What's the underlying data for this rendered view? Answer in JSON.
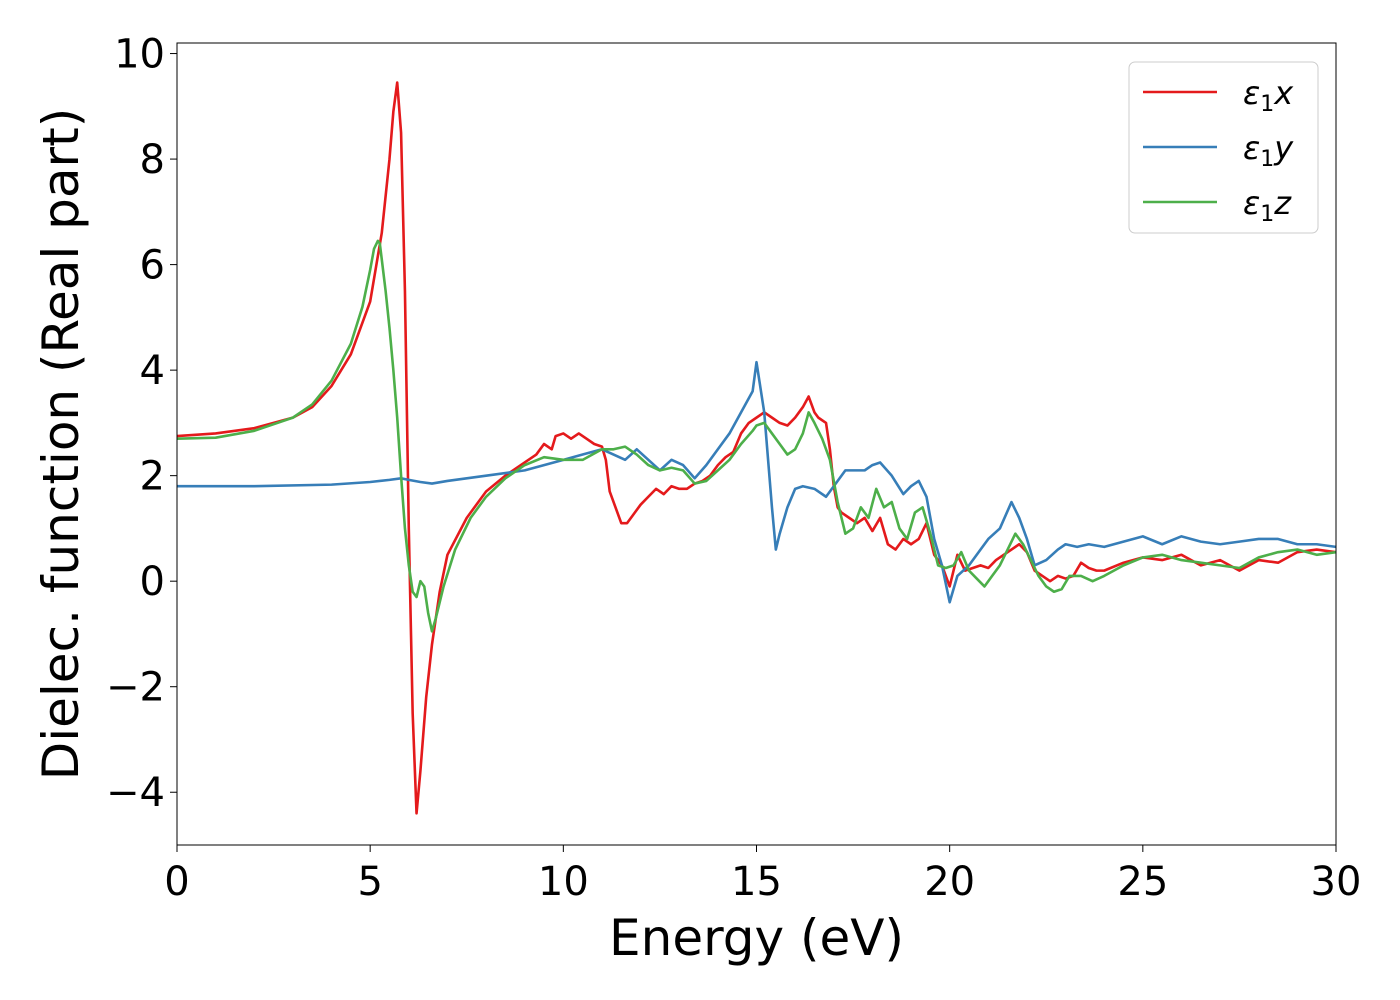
{
  "chart_data": {
    "type": "line",
    "xlabel": "Energy (eV)",
    "ylabel": "Dielec. function (Real part)",
    "xlim": [
      0,
      30
    ],
    "ylim": [
      -5,
      10.2
    ],
    "xticks": [
      0,
      5,
      10,
      15,
      20,
      25,
      30
    ],
    "xtick_labels": [
      "0",
      "5",
      "10",
      "15",
      "20",
      "25",
      "30"
    ],
    "yticks": [
      -4,
      -2,
      0,
      2,
      4,
      6,
      8,
      10
    ],
    "ytick_labels": [
      "−4",
      "−2",
      "0",
      "2",
      "4",
      "6",
      "8",
      "10"
    ],
    "grid": false,
    "legend_position": "top-right",
    "series": [
      {
        "name": "ε1x",
        "legend_main": "ε",
        "legend_sub": "1",
        "legend_tail": "x",
        "color": "#e41a1c",
        "x": [
          0,
          1,
          2,
          3,
          3.5,
          4,
          4.5,
          5,
          5.3,
          5.5,
          5.6,
          5.7,
          5.8,
          5.9,
          6.0,
          6.1,
          6.2,
          6.3,
          6.45,
          6.6,
          6.8,
          7.0,
          7.5,
          8.0,
          8.5,
          9.0,
          9.3,
          9.5,
          9.7,
          9.8,
          10.0,
          10.2,
          10.4,
          10.6,
          10.8,
          11.0,
          11.1,
          11.2,
          11.35,
          11.5,
          11.65,
          11.8,
          12.0,
          12.2,
          12.4,
          12.6,
          12.8,
          13.0,
          13.2,
          13.4,
          13.6,
          13.8,
          14.0,
          14.2,
          14.4,
          14.6,
          14.8,
          15.0,
          15.2,
          15.4,
          15.6,
          15.8,
          16.0,
          16.2,
          16.35,
          16.5,
          16.6,
          16.8,
          16.9,
          17.0,
          17.1,
          17.2,
          17.4,
          17.6,
          17.8,
          18.0,
          18.2,
          18.4,
          18.6,
          18.8,
          19.0,
          19.2,
          19.4,
          19.6,
          19.8,
          20.0,
          20.2,
          20.4,
          20.6,
          20.8,
          21.0,
          21.2,
          21.4,
          21.6,
          21.8,
          22.0,
          22.2,
          22.4,
          22.6,
          22.8,
          23.0,
          23.2,
          23.4,
          23.6,
          23.8,
          24.0,
          24.5,
          25.0,
          25.5,
          26.0,
          26.5,
          27.0,
          27.5,
          28.0,
          28.5,
          29.0,
          29.5,
          30.0
        ],
        "y": [
          2.75,
          2.8,
          2.9,
          3.1,
          3.3,
          3.7,
          4.3,
          5.3,
          6.6,
          8.0,
          8.9,
          9.45,
          8.5,
          5.5,
          1.0,
          -2.5,
          -4.4,
          -3.6,
          -2.2,
          -1.2,
          -0.2,
          0.5,
          1.2,
          1.7,
          2.0,
          2.25,
          2.4,
          2.6,
          2.5,
          2.75,
          2.8,
          2.7,
          2.8,
          2.7,
          2.6,
          2.55,
          2.3,
          1.7,
          1.4,
          1.1,
          1.1,
          1.25,
          1.45,
          1.6,
          1.75,
          1.65,
          1.8,
          1.75,
          1.75,
          1.85,
          1.9,
          2.0,
          2.2,
          2.35,
          2.45,
          2.8,
          3.0,
          3.1,
          3.2,
          3.1,
          3.0,
          2.95,
          3.1,
          3.3,
          3.5,
          3.2,
          3.1,
          3.0,
          2.5,
          1.8,
          1.4,
          1.3,
          1.2,
          1.1,
          1.2,
          0.95,
          1.2,
          0.7,
          0.6,
          0.8,
          0.7,
          0.8,
          1.1,
          0.5,
          0.3,
          -0.1,
          0.5,
          0.2,
          0.25,
          0.3,
          0.25,
          0.4,
          0.5,
          0.6,
          0.7,
          0.55,
          0.2,
          0.1,
          0.0,
          0.1,
          0.05,
          0.1,
          0.35,
          0.25,
          0.2,
          0.2,
          0.35,
          0.45,
          0.4,
          0.5,
          0.3,
          0.4,
          0.2,
          0.4,
          0.35,
          0.55,
          0.6,
          0.55
        ]
      },
      {
        "name": "ε1y",
        "legend_main": "ε",
        "legend_sub": "1",
        "legend_tail": "y",
        "color": "#377eb8",
        "x": [
          0,
          2,
          4,
          5,
          5.5,
          5.8,
          6.0,
          6.3,
          6.6,
          7.0,
          8.0,
          9.0,
          9.5,
          10.0,
          10.5,
          11.0,
          11.3,
          11.6,
          11.9,
          12.2,
          12.5,
          12.8,
          13.1,
          13.4,
          13.7,
          14.0,
          14.3,
          14.6,
          14.9,
          15.0,
          15.2,
          15.4,
          15.5,
          15.6,
          15.8,
          16.0,
          16.2,
          16.5,
          16.8,
          17.0,
          17.3,
          17.5,
          17.8,
          18.0,
          18.2,
          18.5,
          18.8,
          19.0,
          19.2,
          19.4,
          19.6,
          19.8,
          20.0,
          20.2,
          20.5,
          20.8,
          21.0,
          21.3,
          21.6,
          21.8,
          22.0,
          22.2,
          22.5,
          22.8,
          23.0,
          23.3,
          23.6,
          24.0,
          24.5,
          25.0,
          25.5,
          26.0,
          26.5,
          27.0,
          27.5,
          28.0,
          28.5,
          29.0,
          29.5,
          30.0
        ],
        "y": [
          1.8,
          1.8,
          1.83,
          1.88,
          1.92,
          1.95,
          1.92,
          1.88,
          1.85,
          1.9,
          2.0,
          2.1,
          2.2,
          2.3,
          2.4,
          2.5,
          2.4,
          2.3,
          2.5,
          2.3,
          2.1,
          2.3,
          2.2,
          1.95,
          2.2,
          2.5,
          2.8,
          3.2,
          3.6,
          4.15,
          3.2,
          1.4,
          0.6,
          0.9,
          1.4,
          1.75,
          1.8,
          1.75,
          1.6,
          1.8,
          2.1,
          2.1,
          2.1,
          2.2,
          2.25,
          2.0,
          1.65,
          1.8,
          1.9,
          1.6,
          0.8,
          0.3,
          -0.4,
          0.1,
          0.3,
          0.6,
          0.8,
          1.0,
          1.5,
          1.2,
          0.8,
          0.3,
          0.4,
          0.6,
          0.7,
          0.65,
          0.7,
          0.65,
          0.75,
          0.85,
          0.7,
          0.85,
          0.75,
          0.7,
          0.75,
          0.8,
          0.8,
          0.7,
          0.7,
          0.65
        ]
      },
      {
        "name": "ε1z",
        "legend_main": "ε",
        "legend_sub": "1",
        "legend_tail": "z",
        "color": "#4daf4a",
        "x": [
          0,
          1,
          2,
          3,
          3.5,
          4,
          4.5,
          4.8,
          5.0,
          5.1,
          5.2,
          5.25,
          5.3,
          5.4,
          5.5,
          5.6,
          5.7,
          5.8,
          5.9,
          6.0,
          6.1,
          6.2,
          6.3,
          6.4,
          6.5,
          6.6,
          6.7,
          6.9,
          7.2,
          7.6,
          8.0,
          8.5,
          9.0,
          9.5,
          10.0,
          10.5,
          11.0,
          11.3,
          11.6,
          11.9,
          12.2,
          12.5,
          12.8,
          13.1,
          13.4,
          13.7,
          14.0,
          14.3,
          14.6,
          14.9,
          15.0,
          15.2,
          15.4,
          15.6,
          15.8,
          16.0,
          16.2,
          16.35,
          16.5,
          16.7,
          16.9,
          17.1,
          17.3,
          17.5,
          17.7,
          17.9,
          18.1,
          18.3,
          18.5,
          18.7,
          18.9,
          19.1,
          19.3,
          19.5,
          19.7,
          19.9,
          20.1,
          20.3,
          20.5,
          20.7,
          20.9,
          21.1,
          21.3,
          21.5,
          21.7,
          21.9,
          22.1,
          22.3,
          22.5,
          22.7,
          22.9,
          23.1,
          23.4,
          23.7,
          24.0,
          24.5,
          25.0,
          25.5,
          26.0,
          26.5,
          27.0,
          27.5,
          28.0,
          28.5,
          29.0,
          29.5,
          30.0
        ],
        "y": [
          2.7,
          2.72,
          2.85,
          3.1,
          3.35,
          3.8,
          4.5,
          5.2,
          5.9,
          6.3,
          6.45,
          6.4,
          6.1,
          5.5,
          4.8,
          4.0,
          3.1,
          2.0,
          1.0,
          0.3,
          -0.2,
          -0.3,
          0.0,
          -0.1,
          -0.6,
          -0.95,
          -0.7,
          -0.1,
          0.6,
          1.2,
          1.6,
          1.95,
          2.2,
          2.35,
          2.3,
          2.3,
          2.5,
          2.5,
          2.55,
          2.4,
          2.2,
          2.1,
          2.15,
          2.1,
          1.85,
          1.9,
          2.1,
          2.3,
          2.6,
          2.85,
          2.95,
          3.0,
          2.8,
          2.6,
          2.4,
          2.5,
          2.8,
          3.2,
          3.0,
          2.7,
          2.3,
          1.5,
          0.9,
          1.0,
          1.4,
          1.2,
          1.75,
          1.4,
          1.5,
          1.0,
          0.8,
          1.3,
          1.4,
          0.9,
          0.3,
          0.25,
          0.3,
          0.55,
          0.2,
          0.05,
          -0.1,
          0.1,
          0.3,
          0.6,
          0.9,
          0.7,
          0.4,
          0.1,
          -0.1,
          -0.2,
          -0.15,
          0.1,
          0.1,
          0.0,
          0.1,
          0.3,
          0.45,
          0.5,
          0.4,
          0.35,
          0.3,
          0.25,
          0.45,
          0.55,
          0.6,
          0.5,
          0.55
        ]
      }
    ]
  }
}
